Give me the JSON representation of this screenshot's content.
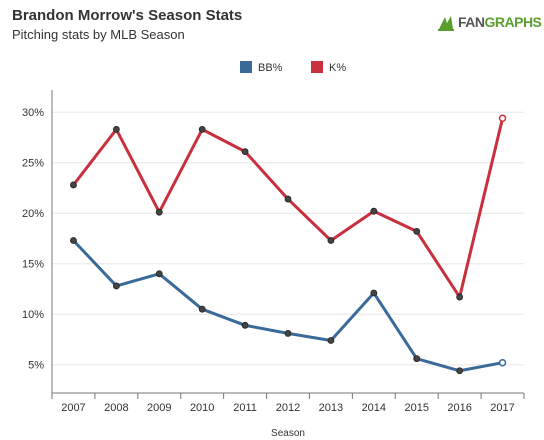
{
  "header": {
    "title": "Brandon Morrow's Season Stats",
    "subtitle": "Pitching stats by MLB Season"
  },
  "logo": {
    "prefix": "FAN",
    "suffix": "GRAPHS",
    "icon": "fangraphs-leaf-icon",
    "colors": {
      "text": "#555555",
      "accent": "#5c9e2d"
    }
  },
  "chart_data": {
    "type": "line",
    "title": "Brandon Morrow's Season Stats",
    "subtitle": "Pitching stats by MLB Season",
    "xlabel": "Season",
    "ylabel": "",
    "categories": [
      "2007",
      "2008",
      "2009",
      "2010",
      "2011",
      "2012",
      "2013",
      "2014",
      "2015",
      "2016",
      "2017"
    ],
    "ylim": [
      2.2,
      32.2
    ],
    "yticks": [
      5,
      10,
      15,
      20,
      25,
      30
    ],
    "ytick_labels": [
      "5%",
      "10%",
      "15%",
      "20%",
      "25%",
      "30%"
    ],
    "grid": "horizontal",
    "legend_position": "top-center",
    "series": [
      {
        "name": "BB%",
        "color": "#3a6a99",
        "values": [
          17.3,
          12.8,
          14.0,
          10.5,
          8.9,
          8.1,
          7.4,
          12.1,
          5.6,
          4.4,
          5.2
        ]
      },
      {
        "name": "K%",
        "color": "#c8303d",
        "values": [
          22.8,
          28.3,
          20.1,
          28.3,
          26.1,
          21.4,
          17.3,
          20.2,
          18.2,
          11.7,
          29.4
        ]
      }
    ],
    "last_point_style": "hollow"
  }
}
